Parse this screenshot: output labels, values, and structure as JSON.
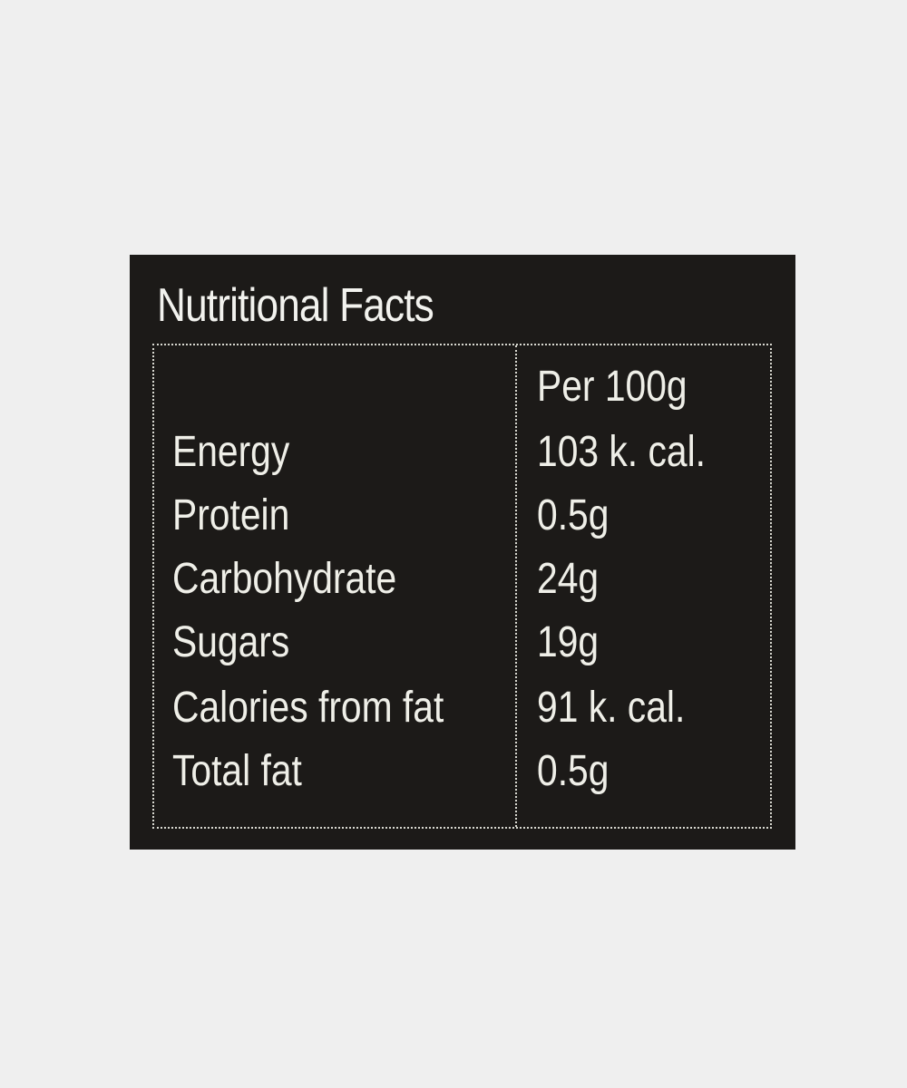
{
  "title": "Nutritional Facts",
  "header": "Per 100g",
  "rows": [
    {
      "name": "Energy",
      "value": "103 k. cal."
    },
    {
      "name": "Protein",
      "value": "0.5g"
    },
    {
      "name": "Carbohydrate",
      "value": "24g"
    },
    {
      "name": "Sugars",
      "value": "19g"
    },
    {
      "name": "Calories from fat",
      "value": "91 k. cal."
    },
    {
      "name": "Total fat",
      "value": "0.5g"
    }
  ]
}
